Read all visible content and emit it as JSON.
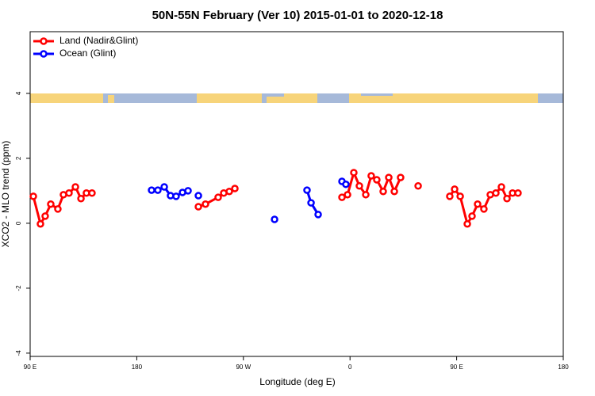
{
  "chart_data": {
    "type": "line",
    "title": "50N-55N February (Ver 10)   2015-01-01 to 2020-12-18",
    "x_label": "Longitude (deg E)",
    "y_label": "XCO2 - MLO trend (ppm)",
    "xlim": [
      90,
      540
    ],
    "ylim": [
      -4.1,
      5.9
    ],
    "xticks": [
      {
        "value": 90,
        "label": "90 E"
      },
      180,
      {
        "value": 270,
        "label": "90 W"
      },
      {
        "value": 360,
        "label": "0"
      },
      {
        "value": 450,
        "label": "90 E"
      },
      {
        "value": 540,
        "label": "180"
      }
    ],
    "yticks": [
      -4,
      -2,
      0,
      2,
      4
    ],
    "legend": "top-left",
    "series": [
      {
        "name": "Land (Nadir&Glint)",
        "color": "#ff0000",
        "x": [
          92.7,
          98.7,
          102.7,
          107.4,
          113.4,
          118.1,
          122.8,
          128.2,
          132.9,
          137.5,
          142.2,
          null,
          232.0,
          238.0,
          248.7,
          253.4,
          258.1,
          262.8,
          null,
          353.2,
          357.9,
          363.2,
          367.9,
          373.3,
          377.9,
          382.6,
          388.0,
          392.7,
          397.4,
          402.7,
          null,
          417.5,
          null,
          444.2,
          448.3,
          453.0,
          459.0,
          463.0,
          467.7,
          473.0,
          478.4,
          483.1,
          487.8,
          492.5,
          497.2,
          501.8
        ],
        "values": [
          0.83,
          -0.02,
          0.22,
          0.59,
          0.44,
          0.88,
          0.93,
          1.12,
          0.76,
          0.93,
          0.93,
          null,
          0.51,
          0.59,
          0.8,
          0.93,
          0.98,
          1.07,
          null,
          0.8,
          0.88,
          1.56,
          1.15,
          0.88,
          1.46,
          1.34,
          0.98,
          1.41,
          0.98,
          1.41,
          null,
          1.15,
          null,
          0.83,
          1.05,
          0.83,
          -0.02,
          0.22,
          0.59,
          0.44,
          0.88,
          0.93,
          1.12,
          0.76,
          0.93,
          0.93
        ]
      },
      {
        "name": "Ocean (Glint)",
        "color": "#0000ff",
        "x": [
          192.5,
          197.8,
          203.2,
          208.5,
          213.2,
          218.6,
          223.3,
          null,
          232.0,
          null,
          296.3,
          null,
          323.7,
          327.1,
          333.1,
          null,
          353.2,
          356.5
        ],
        "values": [
          1.02,
          1.02,
          1.12,
          0.85,
          0.83,
          0.95,
          1.0,
          null,
          0.85,
          null,
          0.12,
          null,
          1.02,
          0.63,
          0.27,
          null,
          1.29,
          1.2
        ]
      }
    ]
  }
}
